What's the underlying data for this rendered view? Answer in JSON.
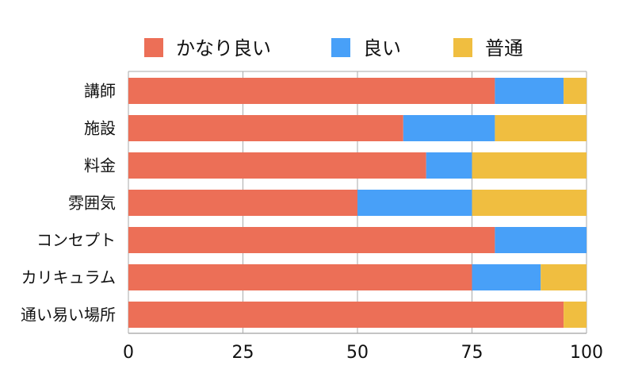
{
  "chart_data": {
    "type": "bar",
    "orientation": "horizontal",
    "stacked": true,
    "categories": [
      "講師",
      "施設",
      "料金",
      "雰囲気",
      "コンセプト",
      "カリキュラム",
      "通い易い場所"
    ],
    "series": [
      {
        "name": "かなり良い",
        "color": "#ec6f57",
        "values": [
          80,
          60,
          65,
          50,
          80,
          75,
          95
        ]
      },
      {
        "name": "良い",
        "color": "#48a0f8",
        "values": [
          15,
          20,
          10,
          25,
          20,
          15,
          0
        ]
      },
      {
        "name": "普通",
        "color": "#f0be40",
        "values": [
          5,
          20,
          25,
          25,
          0,
          10,
          5
        ]
      }
    ],
    "xlim": [
      0,
      100
    ],
    "xticks": [
      "0",
      "25",
      "50",
      "75",
      "100"
    ],
    "grid": true,
    "legend_position": "top"
  }
}
